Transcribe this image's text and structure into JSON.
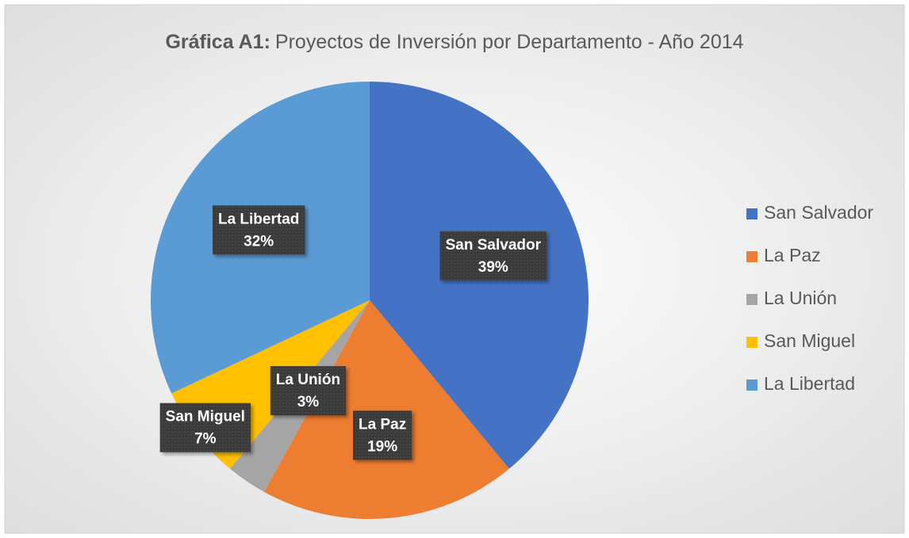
{
  "chart_data": {
    "type": "pie",
    "title_label": "Gráfica A1:",
    "title": "Proyectos de Inversión por Departamento - Año 2014",
    "categories": [
      "San Salvador",
      "La Paz",
      "La Unión",
      "San Miguel",
      "La Libertad"
    ],
    "values": [
      39,
      19,
      3,
      7,
      32
    ],
    "value_labels": [
      "39%",
      "19%",
      "3%",
      "7%",
      "32%"
    ],
    "colors": [
      "#4472c4",
      "#ed7d31",
      "#a5a5a5",
      "#ffc000",
      "#5b9bd5"
    ],
    "legend": "right"
  }
}
